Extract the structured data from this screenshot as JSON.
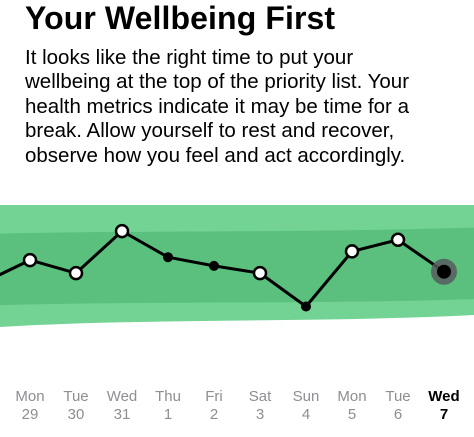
{
  "heading": {
    "title": "Your Wellbeing First"
  },
  "message": {
    "lines": [
      "It looks like the right time to put your",
      "wellbeing at the top of the priority list. Your",
      "health metrics indicate it may be time for a",
      "break. Allow yourself to rest and recover,",
      "observe how you feel and act accordingly."
    ]
  },
  "days": [
    {
      "weekday": "Mon",
      "date": "29"
    },
    {
      "weekday": "Tue",
      "date": "30"
    },
    {
      "weekday": "Wed",
      "date": "31"
    },
    {
      "weekday": "Thu",
      "date": "1"
    },
    {
      "weekday": "Fri",
      "date": "2"
    },
    {
      "weekday": "Sat",
      "date": "3"
    },
    {
      "weekday": "Sun",
      "date": "4"
    },
    {
      "weekday": "Mon",
      "date": "5"
    },
    {
      "weekday": "Tue",
      "date": "6"
    },
    {
      "weekday": "Wed",
      "date": "7"
    }
  ],
  "selected_day_index": 9,
  "colors": {
    "band_light": "#73d394",
    "band_dark": "#5bbf7d",
    "line": "#000000",
    "muted_text": "#8e8e93",
    "selected_halo": "#575a5e"
  },
  "chart_data": {
    "type": "line",
    "categories": [
      "Mon 29",
      "Tue 30",
      "Wed 31",
      "Thu 1",
      "Fri 2",
      "Sat 3",
      "Sun 4",
      "Mon 5",
      "Tue 6",
      "Wed 7"
    ],
    "values": [
      6.2,
      5.3,
      8.2,
      6.4,
      5.8,
      5.3,
      3.0,
      6.8,
      7.6,
      5.4
    ],
    "point_style": [
      "hollow",
      "hollow",
      "hollow",
      "filled",
      "filled",
      "hollow",
      "filled",
      "hollow",
      "hollow",
      "selected"
    ],
    "leading_value": 5.2,
    "band": {
      "outer": [
        2.0,
        10.0
      ],
      "inner": [
        3.3,
        8.3
      ]
    },
    "ylim": [
      0,
      10
    ],
    "grid": false,
    "legend": "none",
    "xlabel": "",
    "ylabel": ""
  }
}
